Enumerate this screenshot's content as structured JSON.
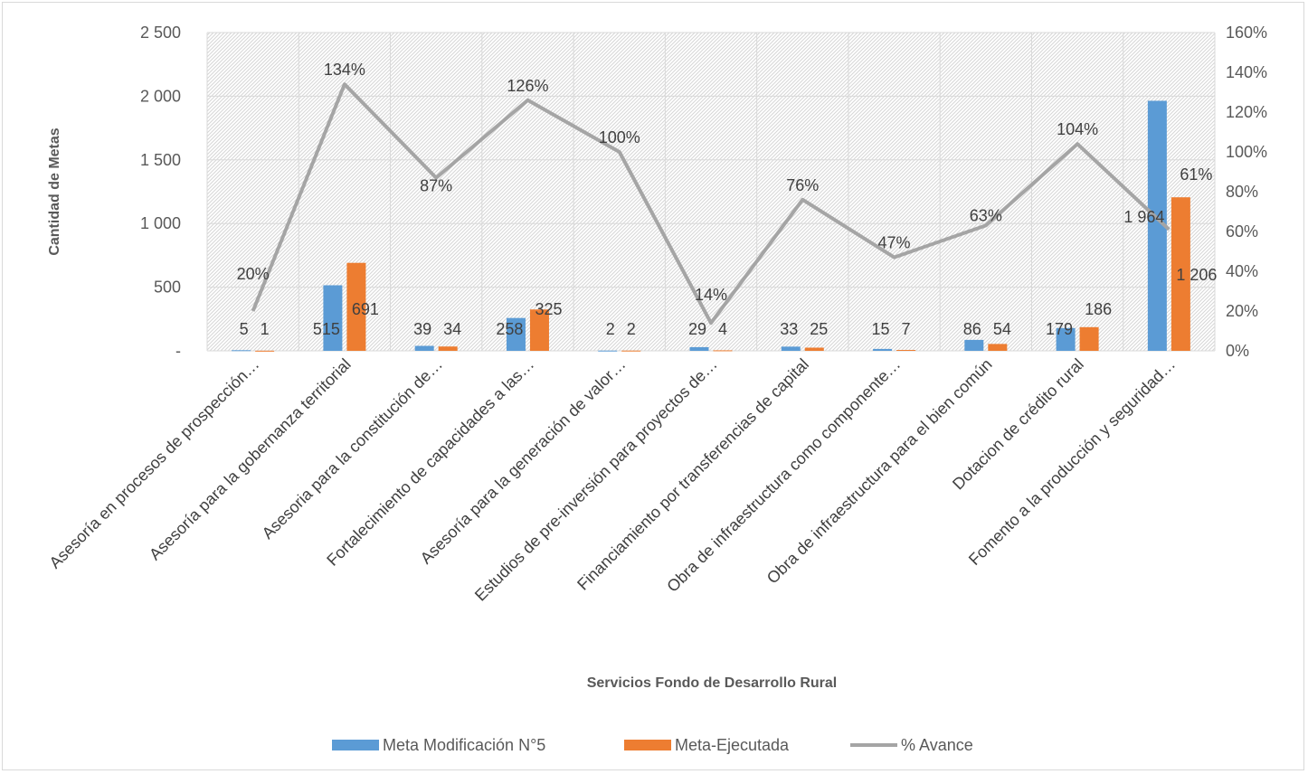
{
  "chart_data": {
    "type": "bar",
    "title": "",
    "xlabel": "Servicios Fondo de Desarrollo Rural",
    "ylabel": "Cantidad de Metas",
    "ylim": [
      0,
      2500
    ],
    "y2lim": [
      0,
      1.6
    ],
    "y_ticks": [
      "-",
      "500",
      "1 000",
      "1 500",
      "2 000",
      "2 500"
    ],
    "y2_ticks": [
      "0%",
      "20%",
      "40%",
      "60%",
      "80%",
      "100%",
      "120%",
      "140%",
      "160%"
    ],
    "grid": true,
    "legend_position": "bottom",
    "categories": [
      "Asesoría en  procesos de prospección…",
      "Asesoría para la gobernanza territorial",
      "Asesoria para la constitución de…",
      "Fortalecimiento de capacidades a las…",
      "Asesoría para la generación de valor…",
      "Estudios de pre-inversión para proyectos de…",
      "Financiamiento por transferencias de capital",
      "Obra de infraestructura como componente…",
      "Obra de infraestructura para el bien común",
      "Dotacion de crédito rural",
      "Fomento a la producción y seguridad…"
    ],
    "series": [
      {
        "name": "Meta Modificación N°5",
        "type": "bar",
        "axis": "left",
        "color": "#5b9bd5",
        "values": [
          5,
          515,
          39,
          258,
          2,
          29,
          33,
          15,
          86,
          179,
          1964
        ],
        "labels": [
          "5",
          "515",
          "39",
          "258",
          "2",
          "29",
          "33",
          "15",
          "86",
          "179",
          "1 964"
        ]
      },
      {
        "name": "Meta-Ejecutada",
        "type": "bar",
        "axis": "left",
        "color": "#ed7d31",
        "values": [
          1,
          691,
          34,
          325,
          2,
          4,
          25,
          7,
          54,
          186,
          1206
        ],
        "labels": [
          "1",
          "691",
          "34",
          "325",
          "2",
          "4",
          "25",
          "7",
          "54",
          "186",
          "1 206"
        ]
      },
      {
        "name": "% Avance",
        "type": "line",
        "axis": "right",
        "color": "#a5a5a5",
        "values": [
          0.2,
          1.34,
          0.87,
          1.26,
          1.0,
          0.14,
          0.76,
          0.47,
          0.63,
          1.04,
          0.61
        ],
        "labels": [
          "20%",
          "134%",
          "87%",
          "126%",
          "100%",
          "14%",
          "76%",
          "47%",
          "63%",
          "104%",
          "61%"
        ]
      }
    ]
  }
}
